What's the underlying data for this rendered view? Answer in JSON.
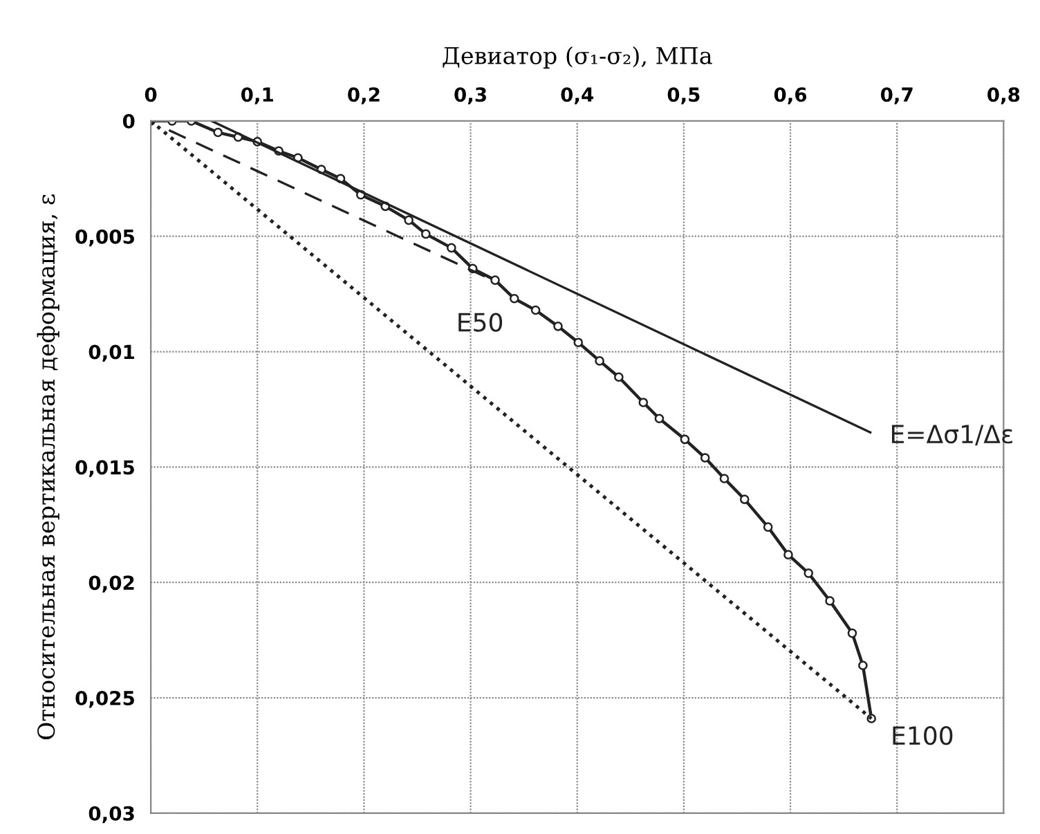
{
  "chart_data": {
    "type": "line",
    "xlabel": "Девиатор (σ₁-σ₂), МПа",
    "ylabel": "Относительная вертикальная деформация, ε",
    "xlim": [
      0,
      0.8
    ],
    "ylim": [
      0.03,
      0
    ],
    "xticks": [
      0,
      {
        "value": 0.1,
        "label": "0,1"
      },
      {
        "value": 0.2,
        "label": "0,2"
      },
      {
        "value": 0.3,
        "label": "0,3"
      },
      {
        "value": 0.4,
        "label": "0,4"
      },
      {
        "value": 0.5,
        "label": "0,5"
      },
      {
        "value": 0.6,
        "label": "0,6"
      },
      {
        "value": 0.7,
        "label": "0,7"
      },
      {
        "value": 0.8,
        "label": "0,8"
      }
    ],
    "yticks": [
      0,
      {
        "value": 0.005,
        "label": "0,005"
      },
      {
        "value": 0.01,
        "label": "0,01"
      },
      {
        "value": 0.015,
        "label": "0,015"
      },
      {
        "value": 0.02,
        "label": "0,02"
      },
      {
        "value": 0.025,
        "label": "0,025"
      },
      {
        "value": 0.03,
        "label": "0,03"
      }
    ],
    "grid": true,
    "series": [
      {
        "color": "#222222",
        "marker": "circle",
        "line_style": "solid",
        "x": [
          0,
          0.02,
          0.038,
          0.063,
          0.082,
          0.1,
          0.12,
          0.138,
          0.16,
          0.178,
          0.197,
          0.22,
          0.242,
          0.258,
          0.282,
          0.302,
          0.323,
          0.341,
          0.361,
          0.382,
          0.401,
          0.421,
          0.439,
          0.462,
          0.477,
          0.501,
          0.52,
          0.538,
          0.557,
          0.579,
          0.598,
          0.617,
          0.637,
          0.658,
          0.668,
          0.676
        ],
        "values": [
          0,
          0,
          0,
          0.0005,
          0.0007,
          0.0009,
          0.0013,
          0.0016,
          0.0021,
          0.0025,
          0.0032,
          0.0037,
          0.0043,
          0.0049,
          0.0055,
          0.0064,
          0.0069,
          0.0077,
          0.0082,
          0.0089,
          0.0096,
          0.0104,
          0.0111,
          0.0122,
          0.0129,
          0.0138,
          0.0146,
          0.0155,
          0.0164,
          0.0176,
          0.0188,
          0.0196,
          0.0208,
          0.0222,
          0.0236,
          0.0259
        ]
      },
      {
        "name": "E=Δσ1/Δε",
        "color": "#222222",
        "marker": "none",
        "line_style": "solid",
        "x": [
          0.057,
          0.675
        ],
        "values": [
          0,
          0.0135
        ]
      },
      {
        "name": "E50",
        "color": "#222222",
        "marker": "none",
        "line_style": "dashed",
        "x": [
          0.017,
          0.316
        ],
        "values": [
          0.0004,
          0.0068
        ]
      },
      {
        "name": "E100",
        "color": "#222222",
        "marker": "none",
        "line_style": "dotted",
        "x": [
          0,
          0.676
        ],
        "values": [
          0,
          0.0259
        ]
      }
    ]
  }
}
